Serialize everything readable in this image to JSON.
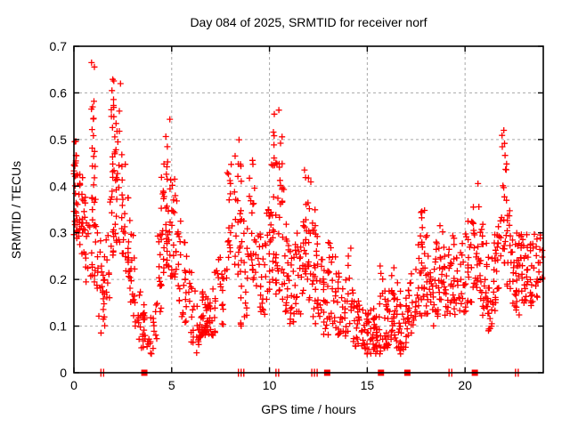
{
  "chart_data": {
    "type": "scatter",
    "title": "Day 084 of 2025, SRMTID for receiver norf",
    "xlabel": "GPS time / hours",
    "ylabel": "SRMTID / TECUs",
    "xlim": [
      0,
      24
    ],
    "ylim": [
      0,
      0.7
    ],
    "xticks": [
      0,
      5,
      10,
      15,
      20
    ],
    "yticks": [
      0,
      0.1,
      0.2,
      0.3,
      0.4,
      0.5,
      0.6,
      0.7
    ],
    "grid": true,
    "legend": "none",
    "marker": {
      "shape": "plus",
      "color": "#ff0000",
      "size": 7
    },
    "grid_color": "#a8a8a8",
    "border_color": "#000000",
    "seed": 84,
    "columns_format": [
      "t_hours",
      "y_min",
      "y_max",
      "n_points",
      "bias(0=bottom-heavy,1=uniform)"
    ],
    "columns": [
      [
        0.05,
        0.42,
        0.5,
        8,
        1
      ],
      [
        0.05,
        0.28,
        0.45,
        14
      ],
      [
        0.2,
        0.3,
        0.46,
        16
      ],
      [
        0.35,
        0.25,
        0.42,
        12
      ],
      [
        0.5,
        0.22,
        0.38,
        10
      ],
      [
        0.65,
        0.18,
        0.34,
        8
      ],
      [
        0.85,
        0.2,
        0.35,
        8
      ],
      [
        1.0,
        0.45,
        0.67,
        10,
        1
      ],
      [
        1.0,
        0.28,
        0.48,
        10
      ],
      [
        1.15,
        0.18,
        0.42,
        10
      ],
      [
        1.3,
        0.12,
        0.3,
        8
      ],
      [
        1.45,
        0.08,
        0.22,
        10
      ],
      [
        1.6,
        0.1,
        0.25,
        8
      ],
      [
        1.75,
        0.15,
        0.3,
        8
      ],
      [
        1.95,
        0.42,
        0.63,
        10,
        1
      ],
      [
        1.95,
        0.25,
        0.45,
        12
      ],
      [
        2.1,
        0.4,
        0.58,
        8,
        1
      ],
      [
        2.1,
        0.25,
        0.42,
        10
      ],
      [
        2.25,
        0.28,
        0.5,
        10
      ],
      [
        2.4,
        0.28,
        0.62,
        8
      ],
      [
        2.55,
        0.25,
        0.45,
        10
      ],
      [
        2.7,
        0.2,
        0.38,
        10
      ],
      [
        2.85,
        0.18,
        0.33,
        8
      ],
      [
        3.0,
        0.15,
        0.3,
        8
      ],
      [
        3.15,
        0.1,
        0.25,
        8
      ],
      [
        3.35,
        0.07,
        0.18,
        8
      ],
      [
        3.5,
        0.05,
        0.15,
        10
      ],
      [
        3.65,
        0.05,
        0.13,
        8
      ],
      [
        3.85,
        0.04,
        0.12,
        6
      ],
      [
        4.0,
        0.04,
        0.12,
        6
      ],
      [
        4.15,
        0.06,
        0.15,
        6
      ],
      [
        4.35,
        0.12,
        0.3,
        10
      ],
      [
        4.5,
        0.18,
        0.42,
        12
      ],
      [
        4.65,
        0.22,
        0.45,
        12
      ],
      [
        4.8,
        0.4,
        0.55,
        6,
        1
      ],
      [
        4.8,
        0.22,
        0.42,
        12
      ],
      [
        4.95,
        0.2,
        0.42,
        10
      ],
      [
        5.1,
        0.2,
        0.42,
        10
      ],
      [
        5.25,
        0.18,
        0.38,
        10
      ],
      [
        5.4,
        0.15,
        0.33,
        8
      ],
      [
        5.6,
        0.12,
        0.28,
        8
      ],
      [
        5.75,
        0.1,
        0.25,
        8
      ],
      [
        5.95,
        0.08,
        0.22,
        8
      ],
      [
        6.1,
        0.06,
        0.18,
        8
      ],
      [
        6.3,
        0.04,
        0.15,
        8
      ],
      [
        6.5,
        0.07,
        0.17,
        12
      ],
      [
        6.65,
        0.08,
        0.18,
        14
      ],
      [
        6.8,
        0.08,
        0.16,
        12
      ],
      [
        6.95,
        0.07,
        0.15,
        10
      ],
      [
        7.15,
        0.08,
        0.18,
        8
      ],
      [
        7.3,
        0.1,
        0.22,
        8
      ],
      [
        7.5,
        0.12,
        0.25,
        8
      ],
      [
        7.65,
        0.1,
        0.22,
        6
      ],
      [
        7.9,
        0.2,
        0.43,
        10
      ],
      [
        8.05,
        0.25,
        0.45,
        8
      ],
      [
        8.3,
        0.2,
        0.47,
        12
      ],
      [
        8.45,
        0.15,
        0.5,
        12
      ],
      [
        8.6,
        0.1,
        0.35,
        10
      ],
      [
        8.75,
        0.12,
        0.3,
        8
      ],
      [
        8.95,
        0.2,
        0.42,
        10
      ],
      [
        9.1,
        0.22,
        0.46,
        12
      ],
      [
        9.25,
        0.18,
        0.4,
        10
      ],
      [
        9.45,
        0.12,
        0.3,
        8
      ],
      [
        9.6,
        0.1,
        0.25,
        8
      ],
      [
        9.75,
        0.12,
        0.28,
        8
      ],
      [
        9.95,
        0.15,
        0.35,
        10
      ],
      [
        10.1,
        0.2,
        0.45,
        10
      ],
      [
        10.25,
        0.45,
        0.555,
        6,
        1
      ],
      [
        10.25,
        0.2,
        0.45,
        10
      ],
      [
        10.4,
        0.15,
        0.45,
        10
      ],
      [
        10.55,
        0.44,
        0.57,
        6,
        1
      ],
      [
        10.55,
        0.15,
        0.42,
        10
      ],
      [
        10.7,
        0.15,
        0.4,
        10
      ],
      [
        10.85,
        0.12,
        0.32,
        10
      ],
      [
        11.0,
        0.1,
        0.28,
        10
      ],
      [
        11.15,
        0.1,
        0.25,
        10
      ],
      [
        11.3,
        0.12,
        0.28,
        8
      ],
      [
        11.5,
        0.12,
        0.3,
        8
      ],
      [
        11.65,
        0.15,
        0.33,
        8
      ],
      [
        11.8,
        0.18,
        0.44,
        12
      ],
      [
        11.95,
        0.2,
        0.42,
        12
      ],
      [
        12.1,
        0.15,
        0.41,
        10
      ],
      [
        12.25,
        0.12,
        0.35,
        10
      ],
      [
        12.4,
        0.1,
        0.3,
        10
      ],
      [
        12.55,
        0.12,
        0.28,
        8
      ],
      [
        12.7,
        0.1,
        0.25,
        8
      ],
      [
        12.85,
        0.08,
        0.22,
        8
      ],
      [
        13.0,
        0.08,
        0.28,
        8
      ],
      [
        13.15,
        0.1,
        0.28,
        8
      ],
      [
        13.3,
        0.1,
        0.25,
        8
      ],
      [
        13.45,
        0.08,
        0.22,
        8
      ],
      [
        13.6,
        0.08,
        0.2,
        8
      ],
      [
        13.8,
        0.07,
        0.18,
        8
      ],
      [
        13.95,
        0.08,
        0.2,
        8
      ],
      [
        14.1,
        0.06,
        0.27,
        8
      ],
      [
        14.3,
        0.06,
        0.18,
        8
      ],
      [
        14.45,
        0.05,
        0.16,
        8
      ],
      [
        14.6,
        0.06,
        0.15,
        8
      ],
      [
        14.8,
        0.05,
        0.14,
        8
      ],
      [
        14.95,
        0.05,
        0.13,
        8
      ],
      [
        15.1,
        0.04,
        0.13,
        10
      ],
      [
        15.25,
        0.05,
        0.14,
        10
      ],
      [
        15.4,
        0.04,
        0.12,
        10
      ],
      [
        15.55,
        0.05,
        0.15,
        10
      ],
      [
        15.7,
        0.04,
        0.23,
        10
      ],
      [
        15.85,
        0.05,
        0.18,
        8
      ],
      [
        16.0,
        0.05,
        0.15,
        10
      ],
      [
        16.15,
        0.06,
        0.18,
        10
      ],
      [
        16.3,
        0.08,
        0.23,
        10
      ],
      [
        16.45,
        0.06,
        0.2,
        10
      ],
      [
        16.6,
        0.05,
        0.18,
        10
      ],
      [
        16.75,
        0.04,
        0.15,
        10
      ],
      [
        16.9,
        0.05,
        0.16,
        8
      ],
      [
        17.05,
        0.06,
        0.18,
        8
      ],
      [
        17.2,
        0.08,
        0.2,
        8
      ],
      [
        17.35,
        0.1,
        0.22,
        8
      ],
      [
        17.55,
        0.12,
        0.25,
        8
      ],
      [
        17.7,
        0.12,
        0.3,
        10
      ],
      [
        17.85,
        0.28,
        0.35,
        5,
        1
      ],
      [
        17.85,
        0.12,
        0.28,
        10
      ],
      [
        18.0,
        0.12,
        0.3,
        10
      ],
      [
        18.15,
        0.1,
        0.25,
        8
      ],
      [
        18.3,
        0.1,
        0.22,
        8
      ],
      [
        18.45,
        0.1,
        0.24,
        8
      ],
      [
        18.6,
        0.12,
        0.28,
        10
      ],
      [
        18.75,
        0.15,
        0.32,
        10
      ],
      [
        18.9,
        0.12,
        0.27,
        8
      ],
      [
        19.05,
        0.1,
        0.25,
        8
      ],
      [
        19.2,
        0.12,
        0.27,
        8
      ],
      [
        19.35,
        0.15,
        0.3,
        10
      ],
      [
        19.5,
        0.12,
        0.28,
        8
      ],
      [
        19.65,
        0.1,
        0.25,
        8
      ],
      [
        19.8,
        0.12,
        0.26,
        8
      ],
      [
        19.95,
        0.13,
        0.28,
        8
      ],
      [
        20.1,
        0.15,
        0.3,
        8
      ],
      [
        20.25,
        0.15,
        0.33,
        8
      ],
      [
        20.4,
        0.18,
        0.36,
        8
      ],
      [
        20.55,
        0.15,
        0.3,
        8
      ],
      [
        20.7,
        0.2,
        0.41,
        10
      ],
      [
        20.85,
        0.15,
        0.32,
        10
      ],
      [
        21.0,
        0.12,
        0.3,
        10
      ],
      [
        21.15,
        0.12,
        0.28,
        10
      ],
      [
        21.3,
        0.09,
        0.25,
        10
      ],
      [
        21.45,
        0.12,
        0.28,
        10
      ],
      [
        21.6,
        0.15,
        0.3,
        10
      ],
      [
        21.75,
        0.18,
        0.33,
        10
      ],
      [
        21.95,
        0.38,
        0.52,
        7,
        1
      ],
      [
        21.95,
        0.22,
        0.38,
        8
      ],
      [
        22.1,
        0.2,
        0.45,
        8
      ],
      [
        22.25,
        0.18,
        0.35,
        10
      ],
      [
        22.4,
        0.15,
        0.3,
        10
      ],
      [
        22.55,
        0.13,
        0.28,
        10
      ],
      [
        22.7,
        0.12,
        0.3,
        12
      ],
      [
        22.85,
        0.15,
        0.3,
        12
      ],
      [
        23.0,
        0.13,
        0.28,
        10
      ],
      [
        23.15,
        0.15,
        0.3,
        10
      ],
      [
        23.3,
        0.12,
        0.28,
        8
      ],
      [
        23.45,
        0.15,
        0.28,
        8
      ],
      [
        23.6,
        0.15,
        0.3,
        8
      ],
      [
        23.75,
        0.18,
        0.3,
        8
      ],
      [
        23.9,
        0.2,
        0.29,
        6
      ]
    ],
    "zero_marks": [
      {
        "t": 1.45,
        "kind": "double"
      },
      {
        "t": 3.6,
        "kind": "square"
      },
      {
        "t": 8.55,
        "kind": "triple"
      },
      {
        "t": 10.4,
        "kind": "double"
      },
      {
        "t": 12.3,
        "kind": "triple"
      },
      {
        "t": 12.95,
        "kind": "square"
      },
      {
        "t": 15.7,
        "kind": "square"
      },
      {
        "t": 17.05,
        "kind": "square"
      },
      {
        "t": 19.25,
        "kind": "double"
      },
      {
        "t": 20.5,
        "kind": "square"
      },
      {
        "t": 22.65,
        "kind": "double"
      }
    ]
  }
}
